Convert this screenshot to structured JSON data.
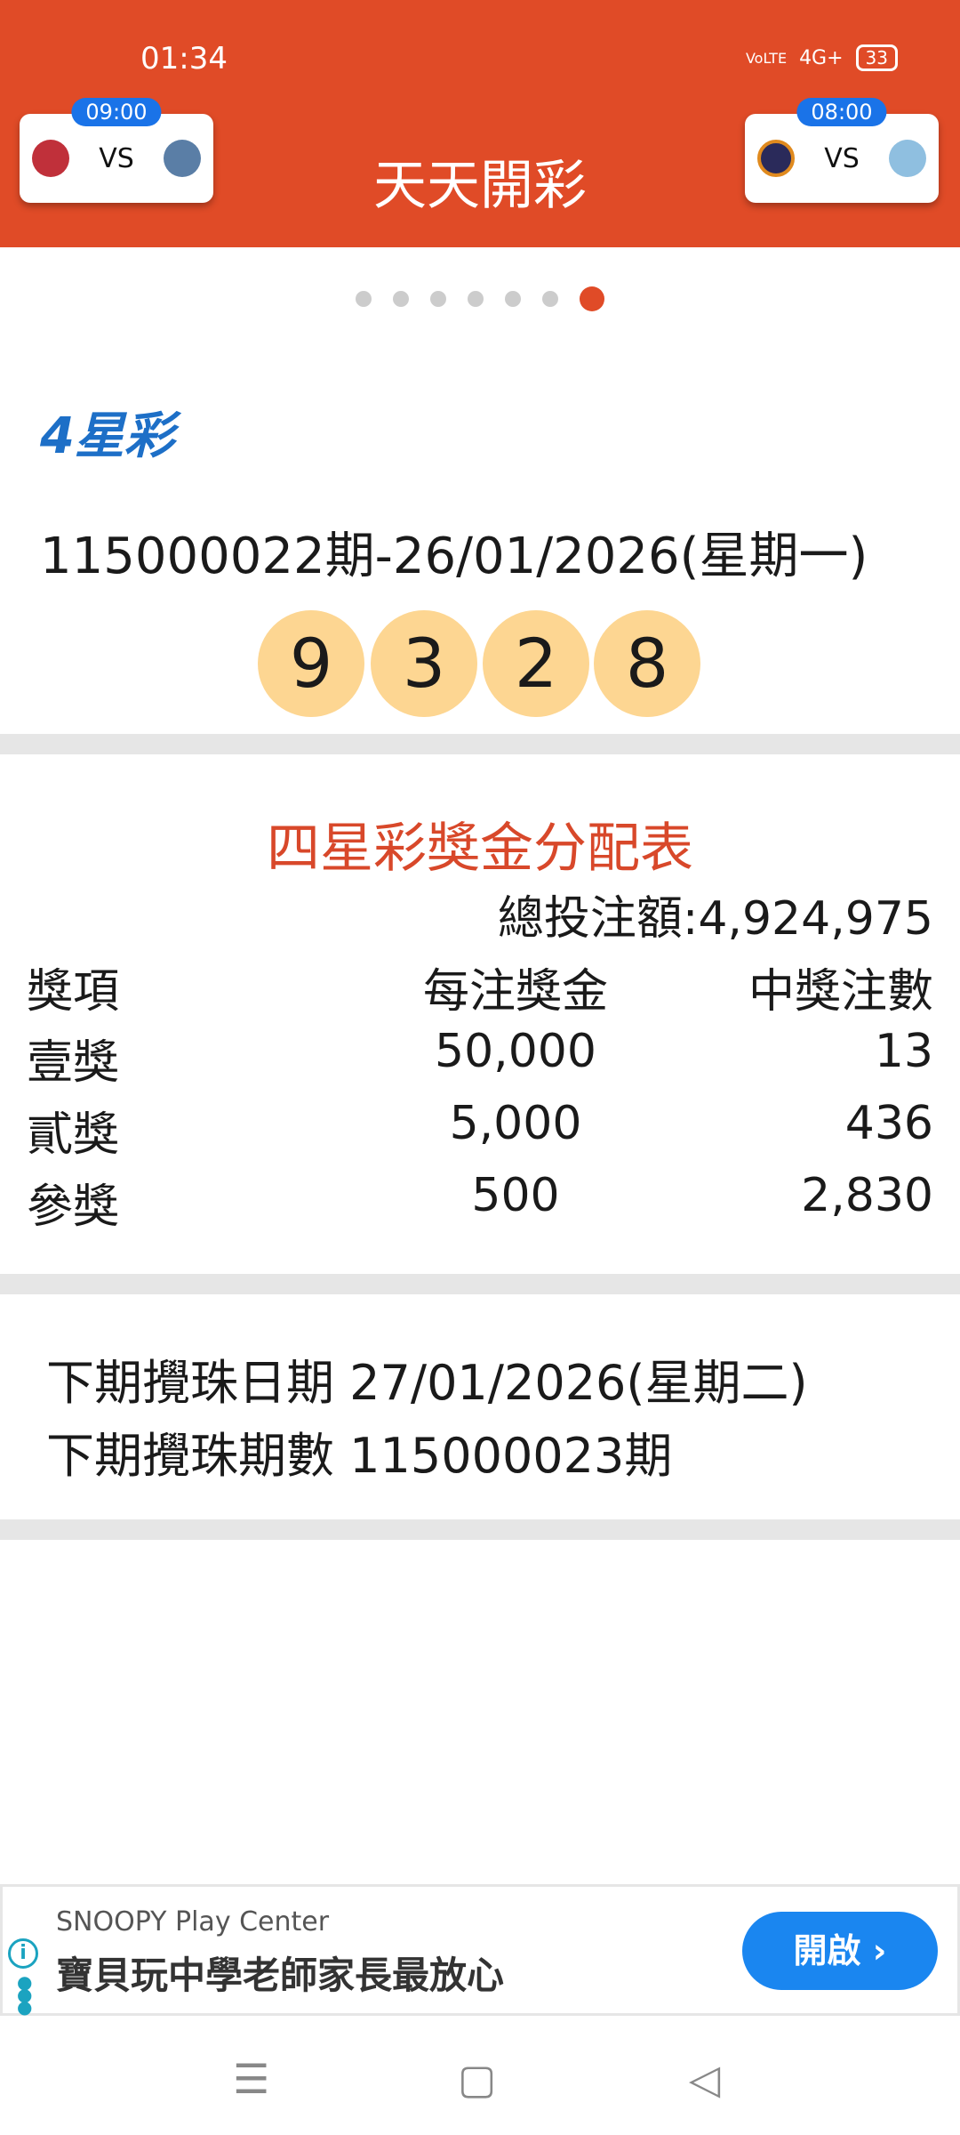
{
  "status_bar": {
    "time": "01:34",
    "network": "4G+",
    "volte": "VoLTE",
    "battery": "33"
  },
  "header": {
    "title": "天天開彩",
    "match_left": {
      "time": "09:00",
      "vs": "VS"
    },
    "match_right": {
      "time": "08:00",
      "vs": "VS"
    }
  },
  "carousel": {
    "count": 7,
    "active": 7
  },
  "colors": {
    "accent": "#e04b27",
    "ball": "#fdd692",
    "table_title": "#d8482a",
    "ad_button": "#1a86f0"
  },
  "lottery": {
    "logo": "4星彩",
    "draw_info": "115000022期-26/01/2026(星期一)",
    "numbers": [
      "9",
      "3",
      "2",
      "8"
    ]
  },
  "prize_table": {
    "title": "四星彩獎金分配表",
    "total": "總投注額:4,924,975",
    "headers": [
      "獎項",
      "每注獎金",
      "中獎注數"
    ],
    "rows": [
      [
        "壹獎",
        "50,000",
        "13"
      ],
      [
        "貳獎",
        "5,000",
        "436"
      ],
      [
        "參獎",
        "500",
        "2,830"
      ]
    ]
  },
  "next_draw": {
    "date": "下期攪珠日期 27/01/2026(星期二)",
    "issue": "下期攪珠期數 115000023期"
  },
  "ad": {
    "sponsor": "SNOOPY Play Center",
    "headline": "寶貝玩中學老師家長最放心",
    "button": "開啟 ›",
    "info": "i"
  },
  "nav": {
    "menu": "☰",
    "home": "▢",
    "back": "◁"
  }
}
